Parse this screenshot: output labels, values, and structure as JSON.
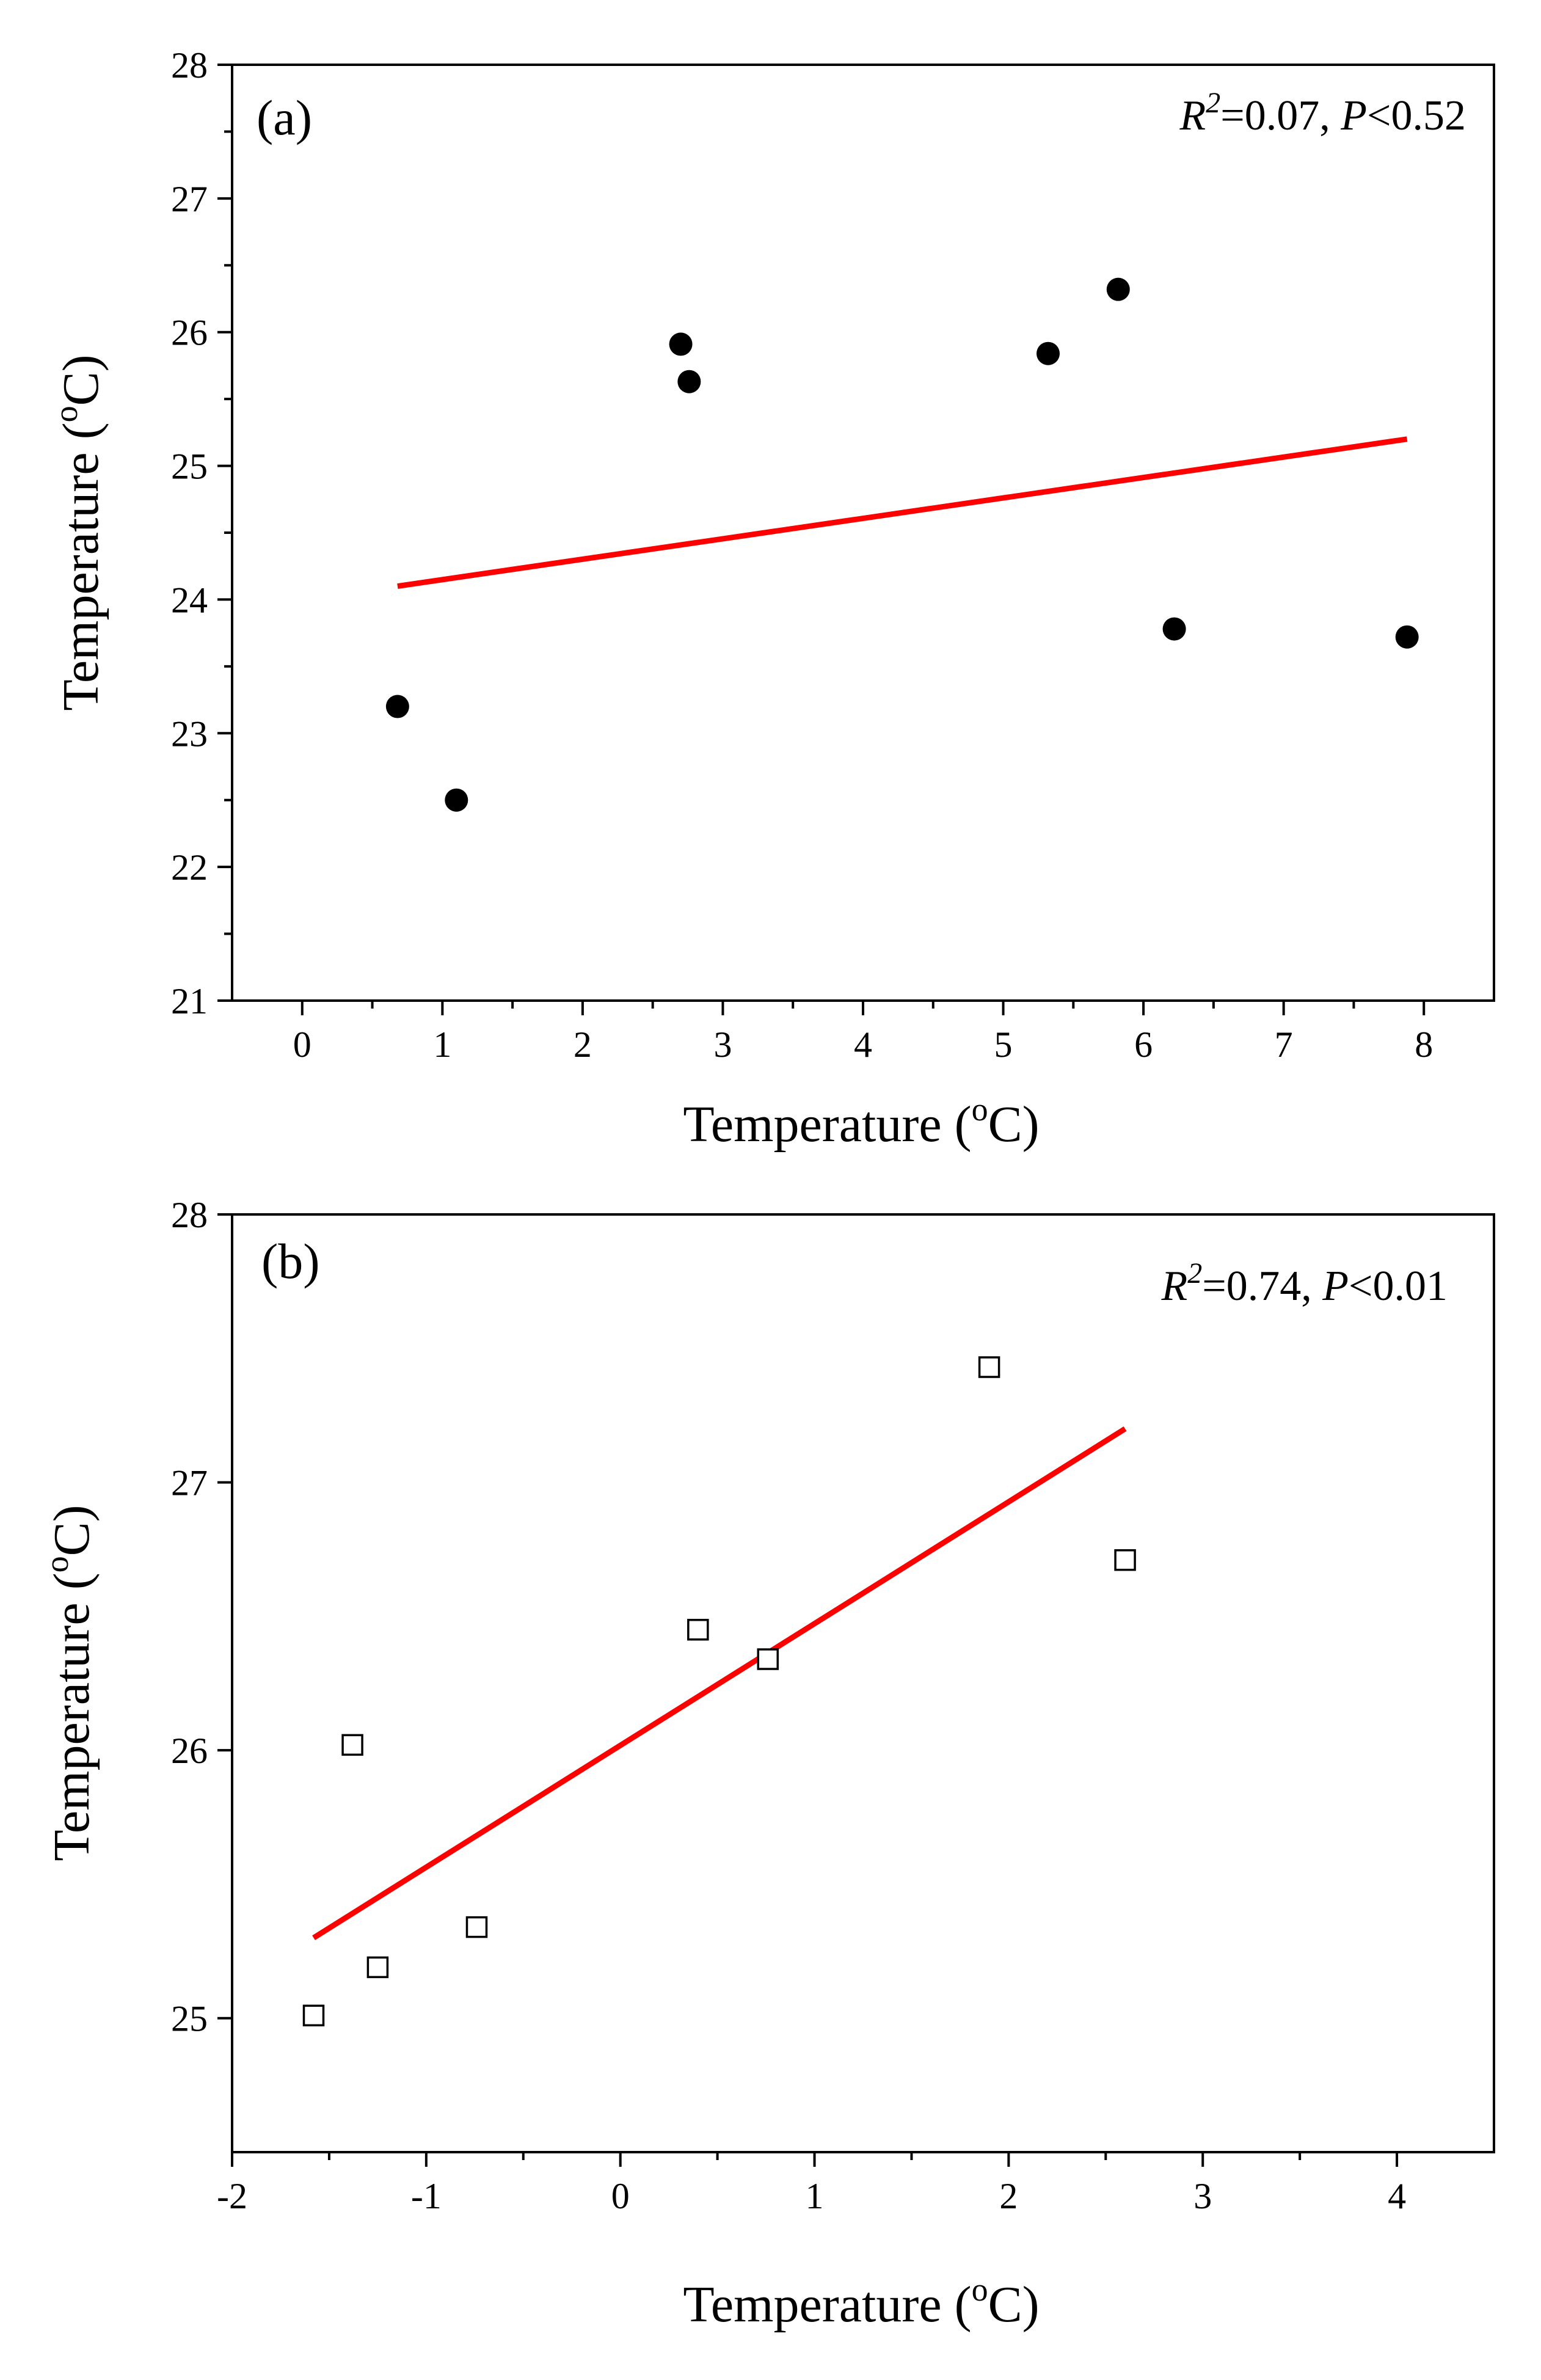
{
  "chart_data": [
    {
      "panel_label": "(a)",
      "type": "scatter",
      "marker": "filled-circle",
      "xlabel": "Temperature (°C)",
      "xlabel_parts": {
        "text": "Temperature (",
        "sup": "o",
        "unit": "C)"
      },
      "ylabel": "Temperature (°C)",
      "ylabel_parts": {
        "text": "Temperature (",
        "sup": "o",
        "unit": "C)"
      },
      "xlim": [
        -0.5,
        8.5
      ],
      "ylim": [
        21,
        28
      ],
      "xticks": [
        0,
        1,
        2,
        3,
        4,
        5,
        6,
        7,
        8
      ],
      "yticks": [
        21,
        22,
        23,
        24,
        25,
        26,
        27,
        28
      ],
      "points": {
        "x": [
          0.68,
          1.1,
          2.7,
          2.76,
          5.32,
          5.82,
          6.22,
          7.88
        ],
        "y": [
          23.2,
          22.5,
          25.91,
          25.63,
          25.84,
          26.32,
          23.78,
          23.72
        ]
      },
      "fit_line": {
        "x": [
          0.68,
          7.88
        ],
        "y": [
          24.1,
          25.2
        ],
        "color": "#ff0000"
      },
      "stats": {
        "r_label": "R",
        "r_sup": "2",
        "r_value": "=0.07, ",
        "p_label": "P",
        "p_value": "<0.52"
      }
    },
    {
      "panel_label": "(b)",
      "type": "scatter",
      "marker": "open-square",
      "xlabel": "Temperature (°C)",
      "xlabel_parts": {
        "text": "Temperature (",
        "sup": "o",
        "unit": "C)"
      },
      "ylabel": "Temperature (°C)",
      "ylabel_parts": {
        "text": "Temperature (",
        "sup": "o",
        "unit": "C)"
      },
      "xlim": [
        -2,
        4.5
      ],
      "ylim": [
        24.5,
        28
      ],
      "xticks": [
        -2,
        -1,
        0,
        1,
        2,
        3,
        4
      ],
      "yticks": [
        25,
        26,
        27,
        28
      ],
      "points": {
        "x": [
          -1.58,
          -1.38,
          -1.25,
          -0.74,
          0.4,
          0.76,
          1.9,
          2.6
        ],
        "y": [
          25.01,
          26.02,
          25.19,
          25.34,
          26.45,
          26.34,
          27.43,
          26.71
        ]
      },
      "fit_line": {
        "x": [
          -1.58,
          2.6
        ],
        "y": [
          25.3,
          27.2
        ],
        "color": "#ff0000"
      },
      "stats": {
        "r_label": "R",
        "r_sup": "2",
        "r_value": "=0.74, ",
        "p_label": "P",
        "p_value": "<0.01"
      }
    }
  ]
}
